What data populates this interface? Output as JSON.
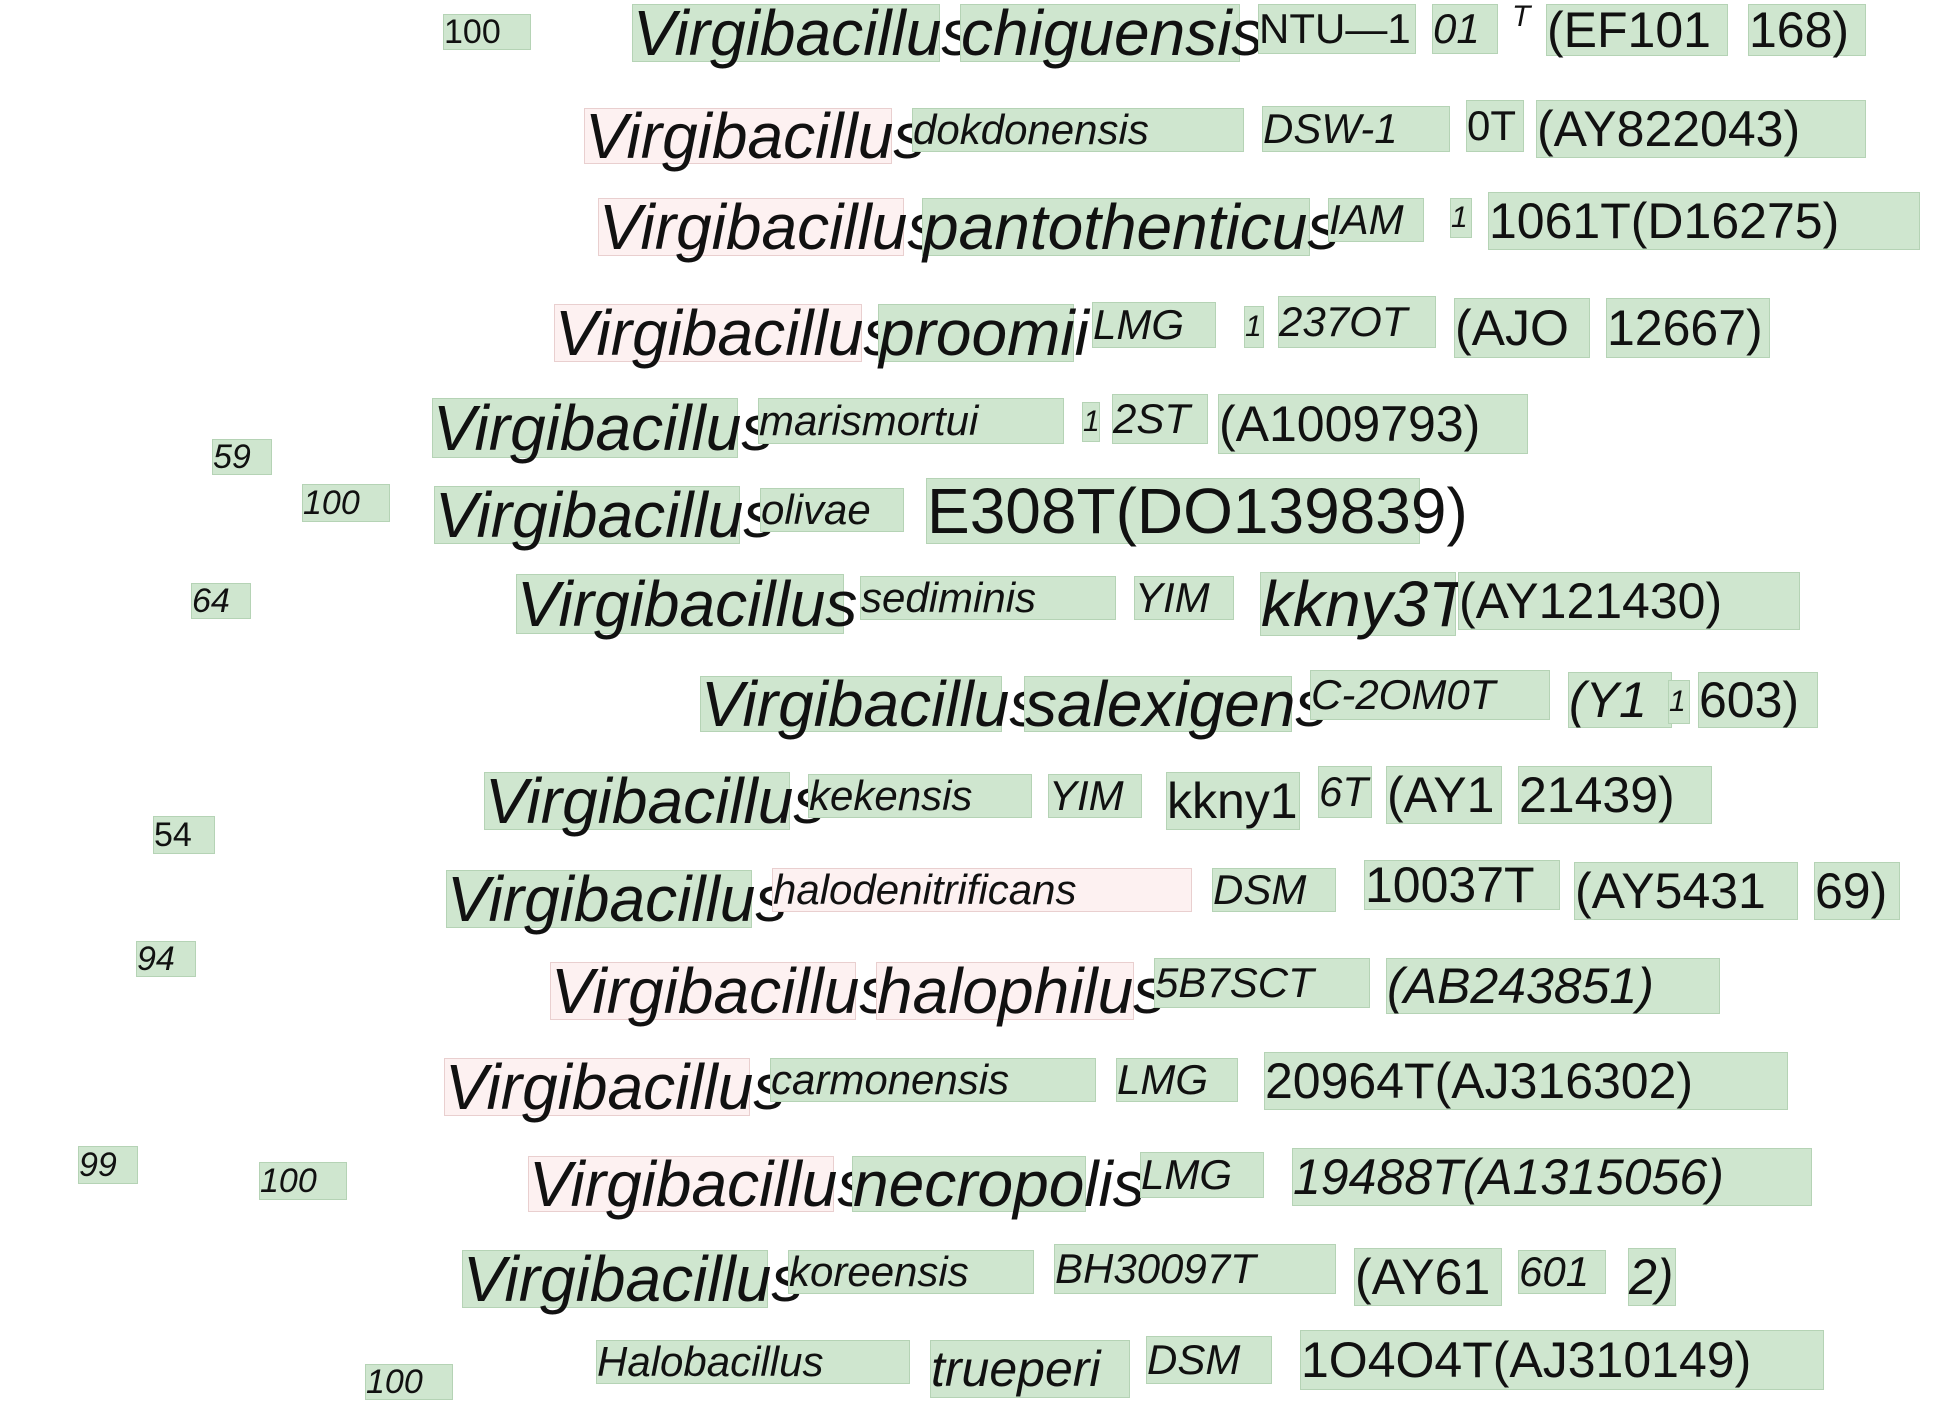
{
  "colors": {
    "highlight_green": "#cfe6cf",
    "highlight_pink": "#fdf1f1"
  },
  "bootstrap": {
    "b100a": "100",
    "b59": "59",
    "b100b": "100",
    "b64": "64",
    "b54": "54",
    "b94": "94",
    "b99": "99",
    "b100c": "100",
    "b100d": "100"
  },
  "taxa": [
    {
      "id": "chiguensis",
      "tokens": [
        "Virgibacillus",
        "chiguensis",
        "NTU—1",
        "01",
        "T",
        "(EF101",
        "168)"
      ]
    },
    {
      "id": "dokdonensis",
      "tokens": [
        "Virgibacillus",
        "dokdonensis",
        "DSW-1",
        "0T",
        "(AY822043)"
      ]
    },
    {
      "id": "pantothenticus",
      "tokens": [
        "Virgibacillus",
        "pantothenticus",
        "IAM",
        "1",
        "1061T(D16275)"
      ]
    },
    {
      "id": "proomii",
      "tokens": [
        "Virgibacillus",
        "proomii",
        "LMG",
        "1",
        "237OT",
        "(AJO",
        "12667)"
      ]
    },
    {
      "id": "marismortui",
      "tokens": [
        "Virgibacillus",
        "marismortui",
        "1",
        "2ST",
        "(A1009793)"
      ]
    },
    {
      "id": "olivae",
      "tokens": [
        "Virgibacillus",
        "olivae",
        "E308T(DO139839)"
      ]
    },
    {
      "id": "sediminis",
      "tokens": [
        "Virgibacillus",
        "sediminis",
        "YIM",
        "kkny3T",
        "(AY121430)"
      ]
    },
    {
      "id": "salexigens",
      "tokens": [
        "Virgibacillus",
        "salexigens",
        "C-2OM0T",
        "(Y1",
        "1",
        "603)"
      ]
    },
    {
      "id": "kekensis",
      "tokens": [
        "Virgibacillus",
        "kekensis",
        "YIM",
        "kkny1",
        "6T",
        "(AY1",
        "21439)"
      ]
    },
    {
      "id": "halodenitrificans",
      "tokens": [
        "Virgibacillus",
        "halodenitrificans",
        "DSM",
        "10037T",
        "(AY5431",
        "69)"
      ]
    },
    {
      "id": "halophilus",
      "tokens": [
        "Virgibacillus",
        "halophilus",
        "5B7SCT",
        "(AB243851)"
      ]
    },
    {
      "id": "carmonensis",
      "tokens": [
        "Virgibacillus",
        "carmonensis",
        "LMG",
        "20964T(AJ316302)"
      ]
    },
    {
      "id": "necropolis",
      "tokens": [
        "Virgibacillus",
        "necropolis",
        "LMG",
        "19488T(A1315056)"
      ]
    },
    {
      "id": "koreensis",
      "tokens": [
        "Virgibacillus",
        "koreensis",
        "BH30097T",
        "(AY61",
        "601",
        "2)"
      ]
    },
    {
      "id": "trueperi",
      "tokens": [
        "Halobacillus",
        "trueperi",
        "DSM",
        "1O4O4T(AJ310149)"
      ]
    }
  ]
}
